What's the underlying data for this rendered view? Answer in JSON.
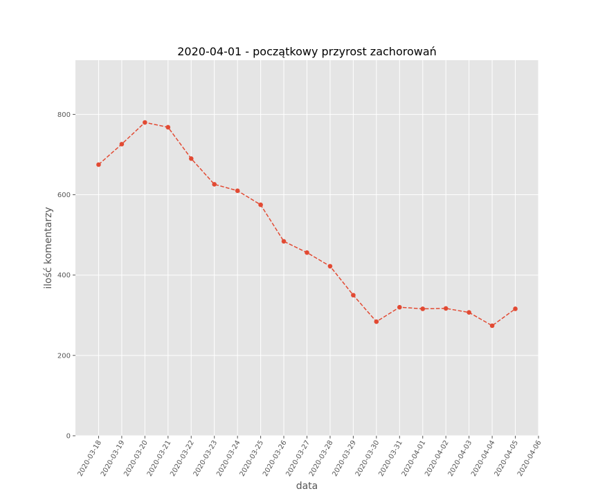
{
  "chart_data": {
    "type": "line",
    "title": "2020-04-01 - początkowy przyrost zachorowań",
    "xlabel": "data",
    "ylabel": "ilość komentarzy",
    "x_ticks": [
      "2020-03-18",
      "2020-03-19",
      "2020-03-20",
      "2020-03-21",
      "2020-03-22",
      "2020-03-23",
      "2020-03-24",
      "2020-03-25",
      "2020-03-26",
      "2020-03-27",
      "2020-03-28",
      "2020-03-29",
      "2020-03-30",
      "2020-03-31",
      "2020-04-01",
      "2020-04-02",
      "2020-04-03",
      "2020-04-04",
      "2020-04-05",
      "2020-04-06"
    ],
    "y_ticks": [
      0,
      200,
      400,
      600,
      800
    ],
    "ylim": [
      0,
      935
    ],
    "xlim": [
      "2020-03-17",
      "2020-04-06"
    ],
    "grid": true,
    "series": [
      {
        "x": [
          "2020-03-18",
          "2020-03-19",
          "2020-03-20",
          "2020-03-21",
          "2020-03-22",
          "2020-03-23",
          "2020-03-24",
          "2020-03-25",
          "2020-03-26",
          "2020-03-27",
          "2020-03-28",
          "2020-03-29",
          "2020-03-30",
          "2020-03-31",
          "2020-04-01",
          "2020-04-02",
          "2020-04-03",
          "2020-04-04",
          "2020-04-05"
        ],
        "values": [
          675,
          726,
          780,
          768,
          690,
          626,
          610,
          575,
          484,
          456,
          422,
          350,
          284,
          320,
          316,
          317,
          307,
          274,
          316
        ],
        "color": "#E24A33",
        "line_style": "dashed",
        "marker": "circle"
      }
    ],
    "colors": {
      "plot_background": "#E5E5E5",
      "grid": "#FFFFFF",
      "tick_text": "#555555"
    }
  }
}
